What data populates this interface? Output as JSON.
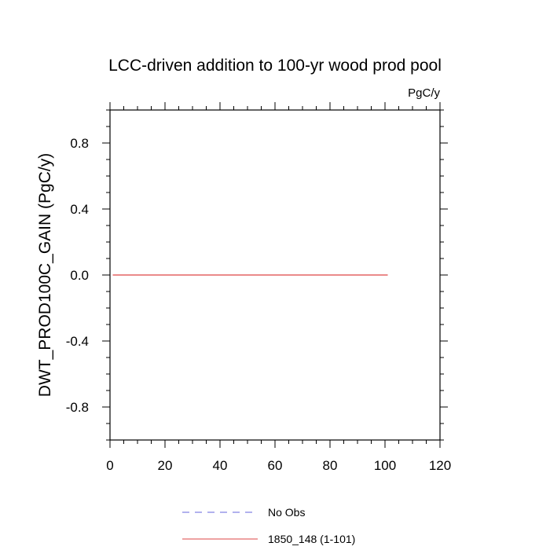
{
  "chart_data": {
    "type": "line",
    "title": "LCC-driven addition to 100-yr wood prod pool",
    "units": "PgC/y",
    "xlabel": "",
    "ylabel": "DWT_PROD100C_GAIN  (PgC/y)",
    "xlim": [
      0,
      120
    ],
    "ylim": [
      -1.0,
      1.0
    ],
    "x_ticks": [
      0,
      20,
      40,
      60,
      80,
      100,
      120
    ],
    "x_tick_labels": [
      "0",
      "20",
      "40",
      "60",
      "80",
      "100",
      "120"
    ],
    "y_ticks": [
      -0.8,
      -0.4,
      0.0,
      0.4,
      0.8
    ],
    "y_tick_labels": [
      "-0.8",
      "-0.4",
      "0.0",
      "0.4",
      "0.8"
    ],
    "grid": false,
    "legend_position": "bottom",
    "series": [
      {
        "name": "No Obs",
        "color": "#6666dd",
        "dash": true,
        "x": [],
        "y": []
      },
      {
        "name": "1850_148 (1-101)",
        "color": "#dd4444",
        "dash": false,
        "x": [
          1,
          101
        ],
        "y": [
          0.0,
          0.0
        ]
      }
    ]
  }
}
